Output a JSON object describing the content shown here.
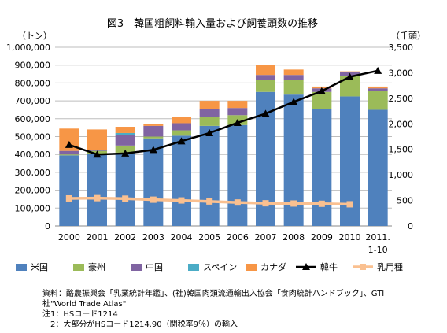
{
  "chart_data": {
    "type": "bar",
    "title": "図3　韓国粗飼料輸入量および飼養頭数の推移",
    "left_axis_unit": "（トン）",
    "right_axis_unit": "（千頭）",
    "categories": [
      "2000",
      "2001",
      "2002",
      "2003",
      "2004",
      "2005",
      "2006",
      "2007",
      "2008",
      "2009",
      "2010",
      "2011.\n1-10"
    ],
    "ylim_left": [
      0,
      1000000
    ],
    "ylim_right": [
      0,
      3500
    ],
    "y_ticks_left": [
      "0",
      "100,000",
      "200,000",
      "300,000",
      "400,000",
      "500,000",
      "600,000",
      "700,000",
      "800,000",
      "900,000",
      "1,000,000"
    ],
    "y_ticks_right": [
      "0",
      "500",
      "1,000",
      "1,500",
      "2,000",
      "2,500",
      "3,000",
      "3,500"
    ],
    "grid": true,
    "legend_position": "bottom",
    "stacked_series": [
      {
        "name": "米国",
        "color": "#4f81bd",
        "values": [
          395000,
          405000,
          410000,
          490000,
          505000,
          560000,
          565000,
          750000,
          735000,
          655000,
          725000,
          650000
        ]
      },
      {
        "name": "豪州",
        "color": "#9bbb59",
        "values": [
          5000,
          15000,
          40000,
          10000,
          30000,
          50000,
          55000,
          65000,
          80000,
          95000,
          115000,
          105000
        ]
      },
      {
        "name": "中国",
        "color": "#8064a2",
        "values": [
          20000,
          5000,
          60000,
          60000,
          40000,
          45000,
          40000,
          30000,
          30000,
          20000,
          20000,
          15000
        ]
      },
      {
        "name": "スペイン",
        "color": "#4bacc6",
        "values": [
          0,
          0,
          10000,
          0,
          0,
          0,
          0,
          0,
          0,
          0,
          0,
          0
        ]
      },
      {
        "name": "カナダ",
        "color": "#f79646",
        "values": [
          125000,
          115000,
          35000,
          10000,
          35000,
          45000,
          40000,
          55000,
          30000,
          10000,
          5000,
          10000
        ]
      }
    ],
    "line_series": [
      {
        "name": "韓牛",
        "color": "#000000",
        "marker": "triangle",
        "axis": "right",
        "values": [
          1590,
          1400,
          1420,
          1490,
          1660,
          1820,
          2020,
          2200,
          2430,
          2640,
          2920,
          3040
        ]
      },
      {
        "name": "乳用種",
        "color": "#fac090",
        "marker": "square",
        "axis": "right",
        "values": [
          540,
          545,
          535,
          515,
          500,
          480,
          460,
          445,
          440,
          435,
          425,
          null
        ]
      }
    ]
  },
  "notes": [
    "資料：酪農振興会「乳業統計年鑑」、(社)韓国肉類流通輸出入協会「食肉統計ハンドブック」、GTI",
    "社\"World Trade Atlas\"",
    "注1：HSコード1214",
    "2：大部分がHSコード1214.90（関税率9％）の輸入"
  ]
}
